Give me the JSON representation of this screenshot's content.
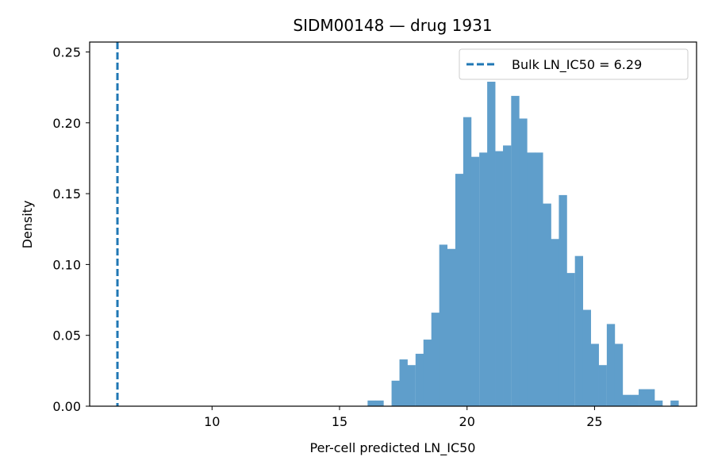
{
  "chart_data": {
    "type": "bar",
    "title": "SIDM00148 — drug 1931",
    "xlabel": "Per-cell predicted LN_IC50",
    "ylabel": "Density",
    "xlim": [
      5.2,
      29.0
    ],
    "ylim": [
      0,
      0.257
    ],
    "xticks": [
      10,
      15,
      20,
      25
    ],
    "yticks": [
      0.0,
      0.05,
      0.1,
      0.15,
      0.2,
      0.25
    ],
    "grid": false,
    "legend_position": "top-right",
    "bin_width": 0.3125,
    "bins": [
      {
        "x0": 16.1,
        "value": 0.004
      },
      {
        "x0": 16.41,
        "value": 0.004
      },
      {
        "x0": 16.73,
        "value": 0.0
      },
      {
        "x0": 17.04,
        "value": 0.018
      },
      {
        "x0": 17.35,
        "value": 0.033
      },
      {
        "x0": 17.66,
        "value": 0.029
      },
      {
        "x0": 17.98,
        "value": 0.037
      },
      {
        "x0": 18.29,
        "value": 0.047
      },
      {
        "x0": 18.6,
        "value": 0.066
      },
      {
        "x0": 18.91,
        "value": 0.114
      },
      {
        "x0": 19.23,
        "value": 0.111
      },
      {
        "x0": 19.54,
        "value": 0.164
      },
      {
        "x0": 19.85,
        "value": 0.204
      },
      {
        "x0": 20.16,
        "value": 0.176
      },
      {
        "x0": 20.48,
        "value": 0.179
      },
      {
        "x0": 20.79,
        "value": 0.229
      },
      {
        "x0": 21.1,
        "value": 0.18
      },
      {
        "x0": 21.41,
        "value": 0.184
      },
      {
        "x0": 21.73,
        "value": 0.219
      },
      {
        "x0": 22.04,
        "value": 0.203
      },
      {
        "x0": 22.35,
        "value": 0.179
      },
      {
        "x0": 22.66,
        "value": 0.179
      },
      {
        "x0": 22.98,
        "value": 0.143
      },
      {
        "x0": 23.29,
        "value": 0.118
      },
      {
        "x0": 23.6,
        "value": 0.149
      },
      {
        "x0": 23.91,
        "value": 0.094
      },
      {
        "x0": 24.23,
        "value": 0.106
      },
      {
        "x0": 24.54,
        "value": 0.068
      },
      {
        "x0": 24.85,
        "value": 0.044
      },
      {
        "x0": 25.16,
        "value": 0.029
      },
      {
        "x0": 25.48,
        "value": 0.058
      },
      {
        "x0": 25.79,
        "value": 0.044
      },
      {
        "x0": 26.1,
        "value": 0.008
      },
      {
        "x0": 26.41,
        "value": 0.008
      },
      {
        "x0": 26.73,
        "value": 0.012
      },
      {
        "x0": 27.04,
        "value": 0.012
      },
      {
        "x0": 27.35,
        "value": 0.004
      },
      {
        "x0": 27.66,
        "value": 0.0
      },
      {
        "x0": 27.98,
        "value": 0.004
      }
    ],
    "bar_color": "#5f9ecb",
    "reference_line": {
      "x": 6.29,
      "label": "Bulk LN_IC50 = 6.29",
      "color": "#1f77b4",
      "style": "dashed"
    }
  }
}
